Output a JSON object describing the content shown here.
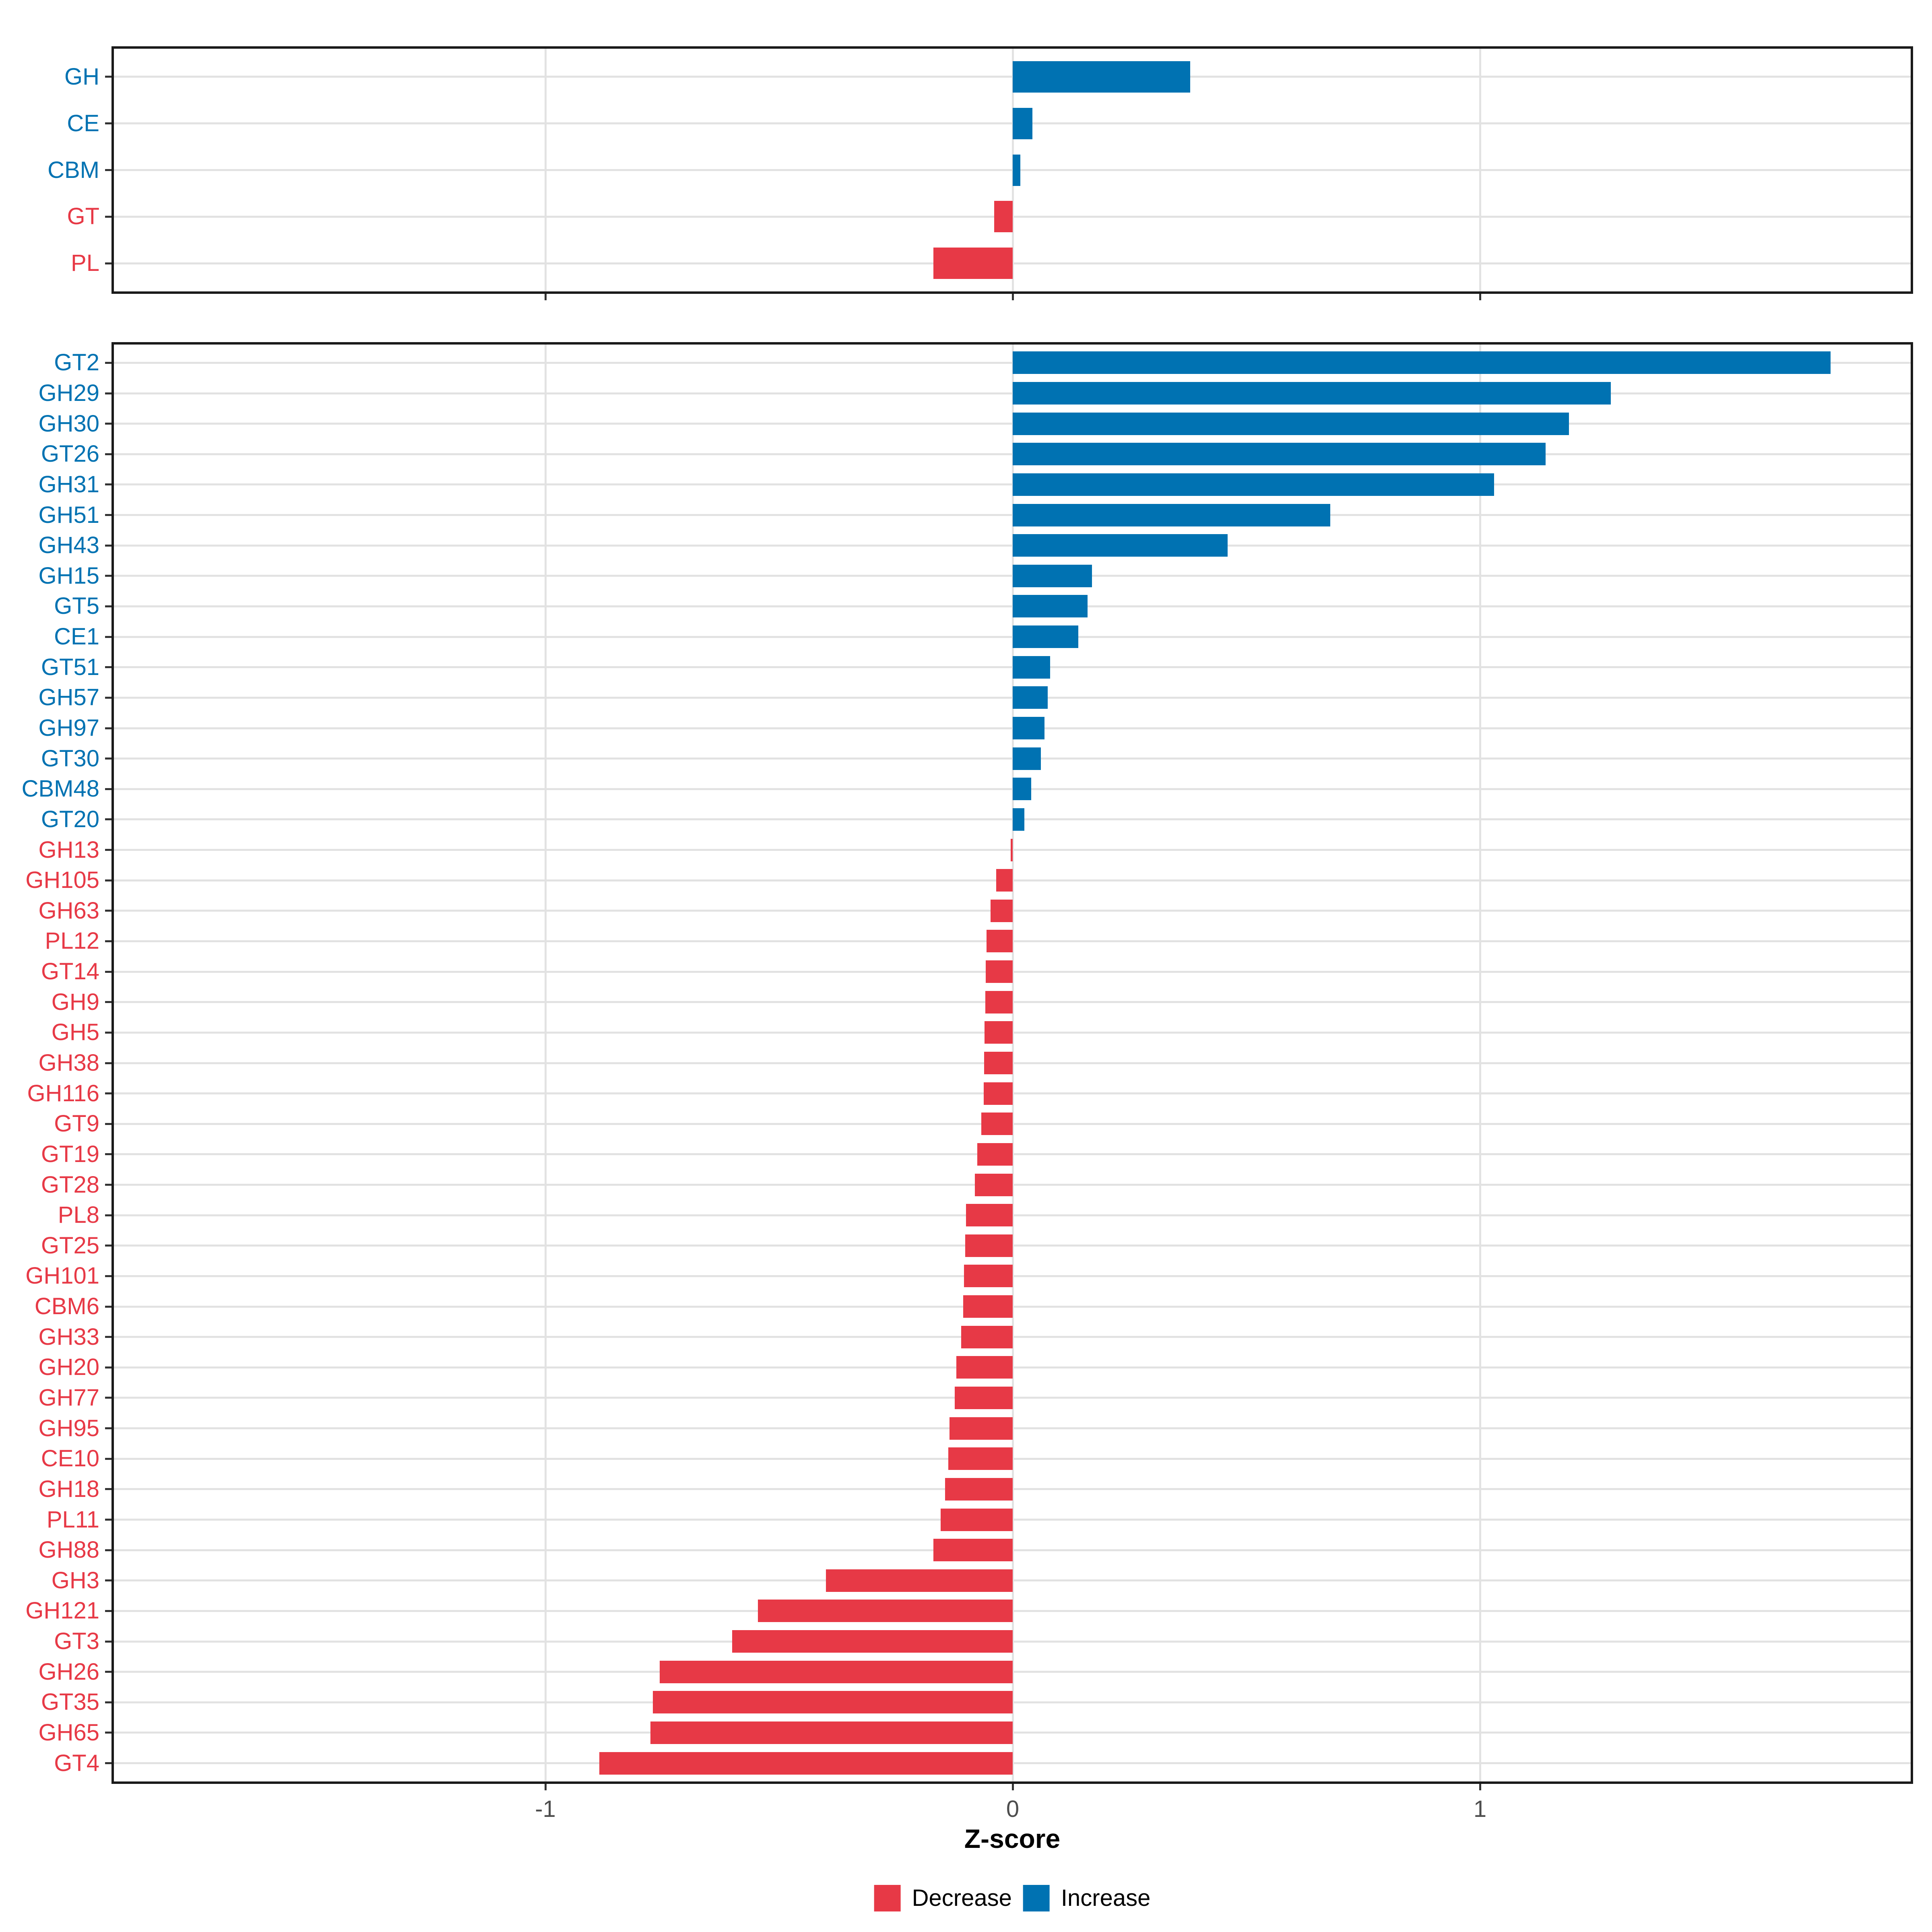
{
  "figure": {
    "xlabel": "Z-score",
    "x_tick_labels": [
      "-1",
      "0",
      "1"
    ],
    "colors": {
      "increase": "#0072B2",
      "decrease": "#E73946",
      "grid": "#E2E2E2",
      "axis_text": "#4D4D4D",
      "panel_border": "#1A1A1A"
    },
    "legend": [
      {
        "label": "Decrease",
        "direction": "decrease"
      },
      {
        "label": "Increase",
        "direction": "increase"
      }
    ]
  },
  "chart_data": [
    {
      "type": "bar",
      "orientation": "horizontal",
      "panel": "cazyme-classes",
      "title": "",
      "xlabel": "",
      "xlim": [
        -1.93,
        1.93
      ],
      "x_ticks": [
        -1,
        0,
        1
      ],
      "grid": true,
      "legend_position": "none",
      "categories": [
        "GH",
        "CE",
        "CBM",
        "GT",
        "PL"
      ],
      "values": [
        0.38,
        0.042,
        0.016,
        -0.04,
        -0.17
      ],
      "directions": [
        "increase",
        "increase",
        "increase",
        "decrease",
        "decrease"
      ]
    },
    {
      "type": "bar",
      "orientation": "horizontal",
      "panel": "cazyme-families",
      "title": "",
      "xlabel": "Z-score",
      "xlim": [
        -1.93,
        1.93
      ],
      "x_ticks": [
        -1,
        0,
        1
      ],
      "grid": true,
      "legend_position": "bottom",
      "categories": [
        "GT2",
        "GH29",
        "GH30",
        "GT26",
        "GH31",
        "GH51",
        "GH43",
        "GH15",
        "GT5",
        "CE1",
        "GT51",
        "GH57",
        "GH97",
        "GT30",
        "CBM48",
        "GT20",
        "GH13",
        "GH105",
        "GH63",
        "PL12",
        "GT14",
        "GH9",
        "GH5",
        "GH38",
        "GH116",
        "GT9",
        "GT19",
        "GT28",
        "PL8",
        "GT25",
        "GH101",
        "CBM6",
        "GH33",
        "GH20",
        "GH77",
        "GH95",
        "CE10",
        "GH18",
        "PL11",
        "GH88",
        "GH3",
        "GH121",
        "GT3",
        "GH26",
        "GT35",
        "GH65",
        "GT4"
      ],
      "values": [
        1.75,
        1.28,
        1.19,
        1.14,
        1.03,
        0.68,
        0.46,
        0.17,
        0.16,
        0.14,
        0.08,
        0.075,
        0.068,
        0.06,
        0.04,
        0.025,
        -0.004,
        -0.035,
        -0.047,
        -0.056,
        -0.058,
        -0.059,
        -0.06,
        -0.061,
        -0.062,
        -0.067,
        -0.076,
        -0.081,
        -0.1,
        -0.102,
        -0.104,
        -0.106,
        -0.11,
        -0.121,
        -0.124,
        -0.135,
        -0.138,
        -0.145,
        -0.154,
        -0.17,
        -0.4,
        -0.545,
        -0.6,
        -0.755,
        -0.77,
        -0.775,
        -0.885
      ],
      "directions": [
        "increase",
        "increase",
        "increase",
        "increase",
        "increase",
        "increase",
        "increase",
        "increase",
        "increase",
        "increase",
        "increase",
        "increase",
        "increase",
        "increase",
        "increase",
        "increase",
        "decrease",
        "decrease",
        "decrease",
        "decrease",
        "decrease",
        "decrease",
        "decrease",
        "decrease",
        "decrease",
        "decrease",
        "decrease",
        "decrease",
        "decrease",
        "decrease",
        "decrease",
        "decrease",
        "decrease",
        "decrease",
        "decrease",
        "decrease",
        "decrease",
        "decrease",
        "decrease",
        "decrease",
        "decrease",
        "decrease",
        "decrease",
        "decrease",
        "decrease",
        "decrease",
        "decrease"
      ]
    }
  ]
}
